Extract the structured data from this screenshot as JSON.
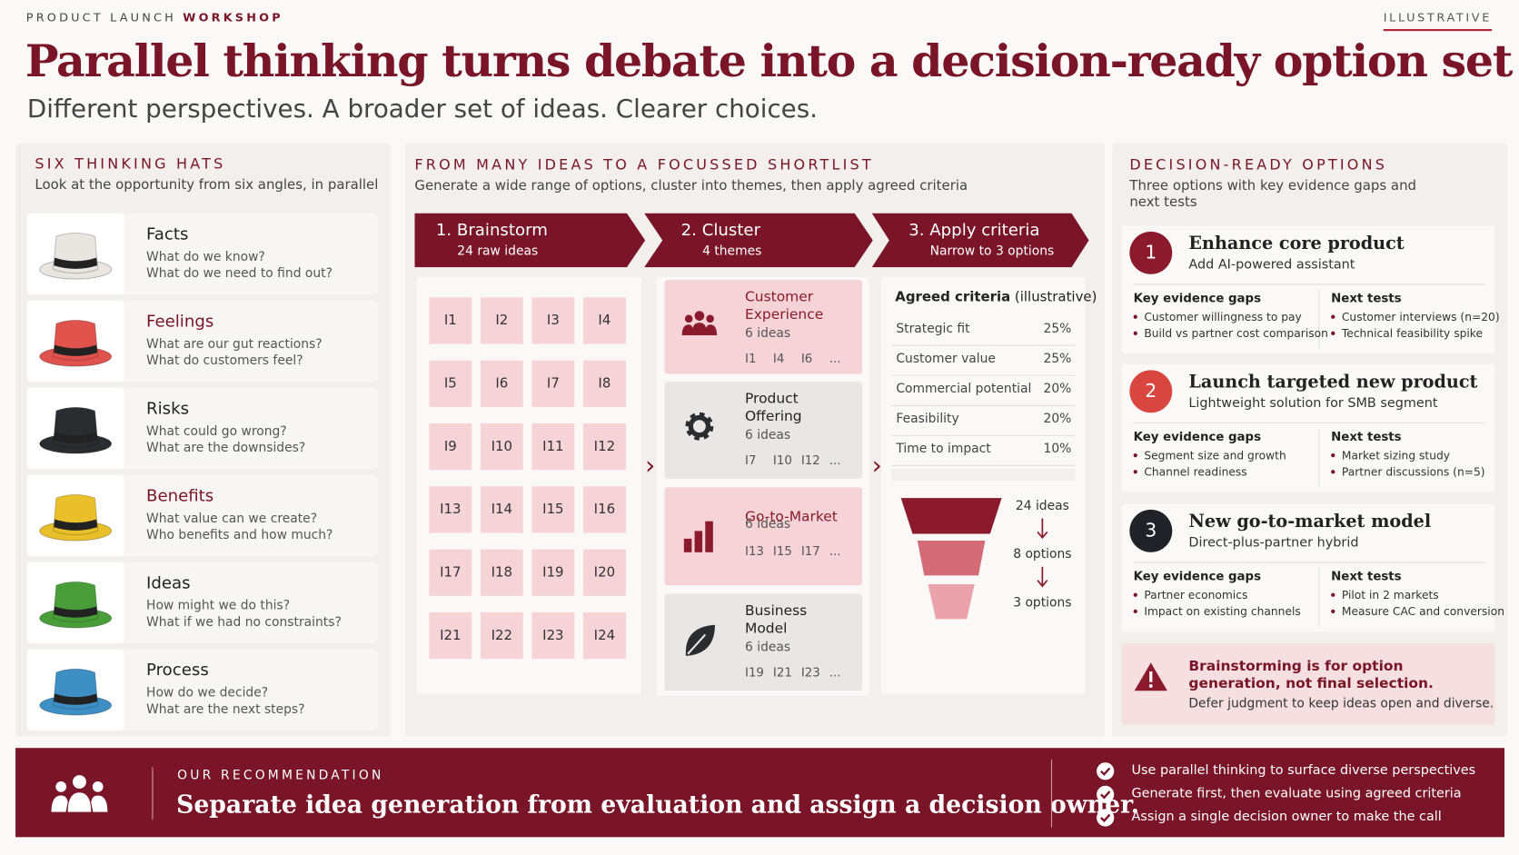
{
  "header": {
    "eyebrow_lead": "PRODUCT LAUNCH",
    "eyebrow_accent": "WORKSHOP",
    "badge": "ILLUSTRATIVE",
    "title": "Parallel thinking turns debate into a decision-ready option set",
    "subtitle": "Different perspectives. A broader set of ideas. Clearer choices."
  },
  "hats": {
    "title": "SIX THINKING HATS",
    "subtitle": "Look at the opportunity from six angles, in parallel",
    "items": [
      {
        "name": "Facts",
        "q1": "What do we know?",
        "q2": "What do we need to find out?",
        "color": "#e9e5e0"
      },
      {
        "name": "Feelings",
        "q1": "What are our gut reactions?",
        "q2": "What do customers feel?",
        "color": "#e0524c"
      },
      {
        "name": "Risks",
        "q1": "What could go wrong?",
        "q2": "What are the downsides?",
        "color": "#2b2c30"
      },
      {
        "name": "Benefits",
        "q1": "What value can we create?",
        "q2": "Who benefits and how much?",
        "color": "#e9c02a"
      },
      {
        "name": "Ideas",
        "q1": "How might we do this?",
        "q2": "What if we had no constraints?",
        "color": "#4a9e3a"
      },
      {
        "name": "Process",
        "q1": "How do we decide?",
        "q2": "What are the next steps?",
        "color": "#3d8fc4"
      }
    ]
  },
  "shortlist": {
    "title": "FROM MANY IDEAS TO A FOCUSSED SHORTLIST",
    "subtitle": "Generate a wide range of options, cluster into themes, then apply agreed criteria",
    "steps": [
      {
        "title": "1. Brainstorm",
        "sub": "24 raw ideas"
      },
      {
        "title": "2. Cluster",
        "sub": "4 themes"
      },
      {
        "title": "3. Apply criteria",
        "sub": "Narrow to 3 options"
      }
    ],
    "ideas": [
      "I1",
      "I2",
      "I3",
      "I4",
      "I5",
      "I6",
      "I7",
      "I8",
      "I9",
      "I10",
      "I11",
      "I12",
      "I13",
      "I14",
      "I15",
      "I16",
      "I17",
      "I18",
      "I19",
      "I20",
      "I21",
      "I22",
      "I23",
      "I24"
    ],
    "clusters": [
      {
        "name": "Customer Experience",
        "count": "6 ideas",
        "ideas": [
          "I1",
          "I4",
          "I6",
          "..."
        ]
      },
      {
        "name": "Product Offering",
        "count": "6 ideas",
        "ideas": [
          "I7",
          "I10",
          "I12",
          "..."
        ]
      },
      {
        "name": "Go-to-Market",
        "count": "6 ideas",
        "ideas": [
          "I13",
          "I15",
          "I17",
          "..."
        ]
      },
      {
        "name": "Business Model",
        "count": "6 ideas",
        "ideas": [
          "I19",
          "I21",
          "I23",
          "..."
        ]
      }
    ],
    "criteria_heading": "Agreed criteria",
    "criteria_note": "(illustrative)",
    "criteria": [
      {
        "name": "Strategic fit",
        "weight": "25%"
      },
      {
        "name": "Customer value",
        "weight": "25%"
      },
      {
        "name": "Commercial potential",
        "weight": "20%"
      },
      {
        "name": "Feasibility",
        "weight": "20%"
      },
      {
        "name": "Time to impact",
        "weight": "10%"
      }
    ],
    "funnel": [
      "24 ideas",
      "8 options",
      "3 options"
    ]
  },
  "options": {
    "title": "DECISION-READY OPTIONS",
    "subtitle": "Three options with key evidence gaps and next tests",
    "items": [
      {
        "number": "1",
        "color": "#8a1a2c",
        "title": "Enhance core product",
        "sub": "Add AI-powered assistant",
        "gaps_label": "Key evidence gaps",
        "gaps": [
          "Customer willingness to pay",
          "Build vs partner cost comparison"
        ],
        "tests_label": "Next tests",
        "tests": [
          "Customer interviews (n=20)",
          "Technical feasibility spike"
        ]
      },
      {
        "number": "2",
        "color": "#d9453f",
        "title": "Launch targeted new product",
        "sub": "Lightweight solution for SMB segment",
        "gaps_label": "Key evidence gaps",
        "gaps": [
          "Segment size and growth",
          "Channel readiness"
        ],
        "tests_label": "Next tests",
        "tests": [
          "Market sizing study",
          "Partner discussions (n=5)"
        ]
      },
      {
        "number": "3",
        "color": "#1f2328",
        "title": "New go-to-market model",
        "sub": "Direct-plus-partner hybrid",
        "gaps_label": "Key evidence gaps",
        "gaps": [
          "Partner economics",
          "Impact on existing channels"
        ],
        "tests_label": "Next tests",
        "tests": [
          "Pilot in 2 markets",
          "Measure CAC and conversion"
        ]
      }
    ],
    "warning": {
      "title": "Brainstorming is for option generation, not final selection.",
      "body": "Defer judgment to keep ideas open and diverse."
    }
  },
  "recommendation": {
    "label": "OUR RECOMMENDATION",
    "text": "Separate idea generation from evaluation and assign a decision owner.",
    "bullets": [
      "Use parallel thinking to surface diverse perspectives",
      "Generate first, then evaluate using agreed criteria",
      "Assign a single decision owner to make the call"
    ]
  }
}
